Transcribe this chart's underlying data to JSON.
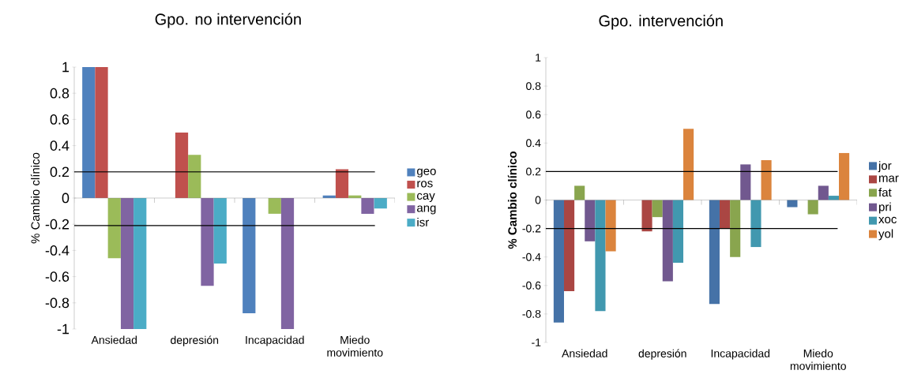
{
  "chart_data": [
    {
      "type": "bar",
      "title": "Gpo. no intervención",
      "ylabel": "% Cambio clínico",
      "categories": [
        "Ansiedad",
        "depresión",
        "Incapacidad",
        "Miedo movimiento"
      ],
      "series": [
        {
          "name": "geo",
          "color": "#4f81bd",
          "values": [
            1,
            null,
            -0.88,
            0.02
          ]
        },
        {
          "name": "ros",
          "color": "#c0504d",
          "values": [
            1,
            0.5,
            null,
            0.22
          ]
        },
        {
          "name": "cay",
          "color": "#9bbb59",
          "values": [
            -0.46,
            0.33,
            -0.12,
            0.02
          ]
        },
        {
          "name": "ang",
          "color": "#8064a2",
          "values": [
            -1,
            -0.67,
            -1,
            -0.12
          ]
        },
        {
          "name": "isr",
          "color": "#4bacc6",
          "values": [
            -1,
            -0.5,
            null,
            -0.08
          ]
        }
      ],
      "ylim": [
        -1,
        1
      ],
      "yticks": [
        -1,
        -0.8,
        -0.6,
        -0.4,
        -0.2,
        0,
        0.2,
        0.4,
        0.6,
        0.8,
        1
      ],
      "legend": "right",
      "ref_lines": [
        {
          "axis": "y",
          "value": 0.2,
          "color": "#000000"
        },
        {
          "axis": "y",
          "value": -0.21,
          "color": "#000000"
        }
      ]
    },
    {
      "type": "bar",
      "title": "Gpo. intervención",
      "ylabel": "% Cambio clínico",
      "categories": [
        "Ansiedad",
        "depresión",
        "Incapacidad",
        "Miedo movimiento"
      ],
      "series": [
        {
          "name": "jor",
          "color": "#4572a7",
          "values": [
            -0.86,
            null,
            -0.73,
            -0.05
          ]
        },
        {
          "name": "mar",
          "color": "#aa4643",
          "values": [
            -0.64,
            -0.22,
            -0.2,
            null
          ]
        },
        {
          "name": "fat",
          "color": "#89a54e",
          "values": [
            0.1,
            -0.12,
            -0.4,
            -0.1
          ]
        },
        {
          "name": "pri",
          "color": "#71588f",
          "values": [
            -0.29,
            -0.57,
            0.25,
            0.1
          ]
        },
        {
          "name": "xoc",
          "color": "#4198af",
          "values": [
            -0.78,
            -0.44,
            -0.33,
            0.03
          ]
        },
        {
          "name": "yol",
          "color": "#db843d",
          "values": [
            -0.36,
            0.5,
            0.28,
            0.33
          ]
        }
      ],
      "ylim": [
        -1,
        1
      ],
      "yticks": [
        -1,
        -0.8,
        -0.6,
        -0.4,
        -0.2,
        0,
        0.2,
        0.4,
        0.6,
        0.8,
        1
      ],
      "legend": "right",
      "ref_lines": [
        {
          "axis": "y",
          "value": 0.2,
          "color": "#000000"
        },
        {
          "axis": "y",
          "value": -0.2,
          "color": "#000000"
        }
      ]
    }
  ]
}
